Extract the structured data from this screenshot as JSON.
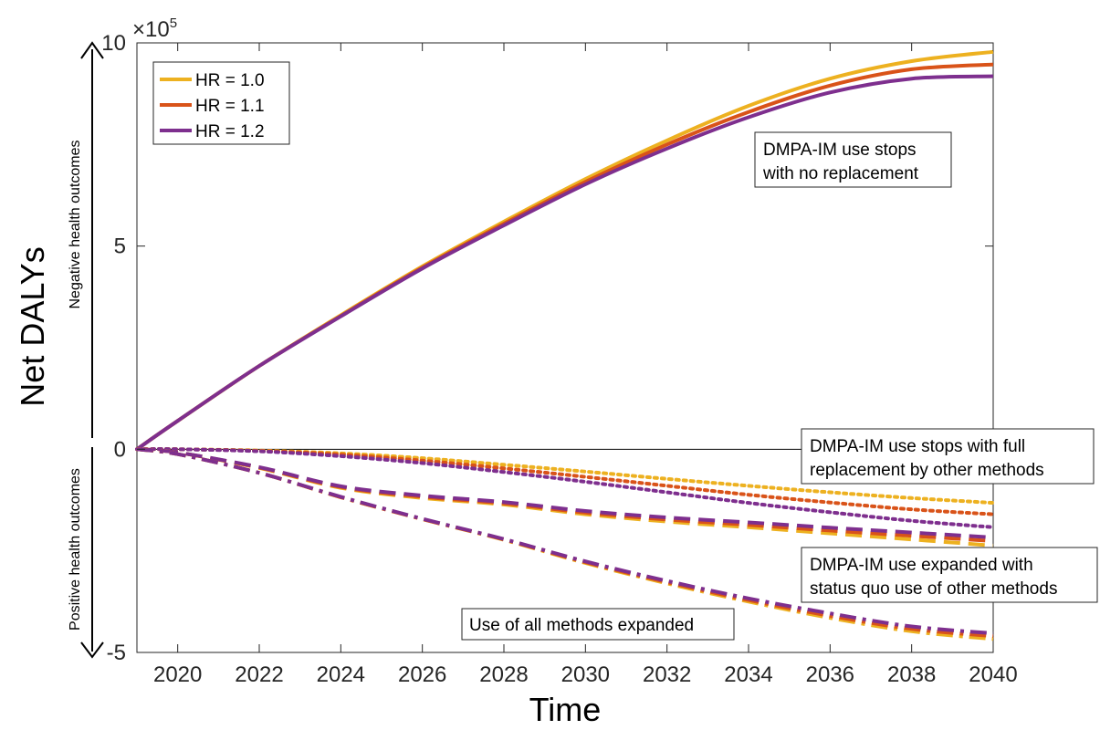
{
  "chart_data": {
    "type": "line",
    "title": "",
    "xlabel": "Time",
    "ylabel": "Net DALYs",
    "y_multiplier_label": "×10",
    "y_multiplier_exponent": "5",
    "xlim": [
      2019,
      2040
    ],
    "ylim": [
      -500000,
      1000000
    ],
    "x_ticks": [
      2020,
      2022,
      2024,
      2026,
      2028,
      2030,
      2032,
      2034,
      2036,
      2038,
      2040
    ],
    "y_ticks": [
      -500000,
      0,
      500000,
      1000000
    ],
    "y_tick_labels": [
      "-5",
      "0",
      "5",
      "10"
    ],
    "grid": false,
    "legend_position": "top-left",
    "side_labels": {
      "negative": "Negative health outcomes",
      "positive": "Positive health outcomes"
    },
    "legend": [
      {
        "label": "HR = 1.0",
        "color": "#EDB120"
      },
      {
        "label": "HR = 1.1",
        "color": "#D95319"
      },
      {
        "label": "HR = 1.2",
        "color": "#7E2F8E"
      }
    ],
    "x": [
      2019,
      2020,
      2022,
      2024,
      2026,
      2028,
      2030,
      2032,
      2034,
      2036,
      2038,
      2040
    ],
    "scenarios": [
      {
        "annotation": [
          "DMPA-IM use stops",
          "with no replacement"
        ],
        "style": "solid",
        "series": [
          {
            "hr": "HR = 1.0",
            "values": [
              0,
              70000,
              205000,
              330000,
              450000,
              560000,
              665000,
              760000,
              845000,
              912000,
              955000,
              978000
            ]
          },
          {
            "hr": "HR = 1.1",
            "values": [
              0,
              70000,
              205000,
              328000,
              447000,
              555000,
              658000,
              750000,
              830000,
              895000,
              935000,
              947000
            ]
          },
          {
            "hr": "HR = 1.2",
            "values": [
              0,
              70000,
              205000,
              327000,
              445000,
              551000,
              652000,
              740000,
              817000,
              878000,
              912000,
              918000
            ]
          }
        ]
      },
      {
        "annotation": [
          "DMPA-IM use stops with full",
          "replacement by other methods"
        ],
        "style": "dotted",
        "series": [
          {
            "hr": "HR = 1.0",
            "values": [
              0,
              0,
              -3000,
              -10000,
              -22000,
              -38000,
              -55000,
              -73000,
              -90000,
              -106000,
              -120000,
              -132000
            ]
          },
          {
            "hr": "HR = 1.1",
            "values": [
              0,
              0,
              -4000,
              -13000,
              -28000,
              -47000,
              -68000,
              -90000,
              -112000,
              -131000,
              -148000,
              -160000
            ]
          },
          {
            "hr": "HR = 1.2",
            "values": [
              0,
              0,
              -5000,
              -17000,
              -34000,
              -56000,
              -80000,
              -106000,
              -132000,
              -155000,
              -176000,
              -192000
            ]
          }
        ]
      },
      {
        "annotation": [
          "DMPA-IM use expanded with",
          "status quo use of other methods"
        ],
        "style": "dashed",
        "series": [
          {
            "hr": "HR = 1.0",
            "values": [
              0,
              -8000,
              -46000,
              -95000,
              -120000,
              -136000,
              -160000,
              -178000,
              -192000,
              -207000,
              -222000,
              -237000
            ]
          },
          {
            "hr": "HR = 1.1",
            "values": [
              0,
              -8000,
              -45000,
              -93000,
              -117000,
              -133000,
              -156000,
              -173000,
              -186000,
              -200000,
              -213000,
              -226000
            ]
          },
          {
            "hr": "HR = 1.2",
            "values": [
              0,
              -8000,
              -44000,
              -91000,
              -114000,
              -130000,
              -152000,
              -168000,
              -180000,
              -193000,
              -205000,
              -217000
            ]
          }
        ]
      },
      {
        "annotation": [
          "Use of all methods expanded"
        ],
        "style": "dashdot",
        "series": [
          {
            "hr": "HR = 1.0",
            "values": [
              0,
              -12000,
              -58000,
              -118000,
              -172000,
              -223000,
              -280000,
              -330000,
              -375000,
              -415000,
              -448000,
              -467000
            ]
          },
          {
            "hr": "HR = 1.1",
            "values": [
              0,
              -12000,
              -58000,
              -118000,
              -172000,
              -222000,
              -278000,
              -327000,
              -371000,
              -410000,
              -442000,
              -460000
            ]
          },
          {
            "hr": "HR = 1.2",
            "values": [
              0,
              -12000,
              -58000,
              -117000,
              -171000,
              -221000,
              -276000,
              -324000,
              -367000,
              -404000,
              -436000,
              -453000
            ]
          }
        ]
      }
    ]
  }
}
